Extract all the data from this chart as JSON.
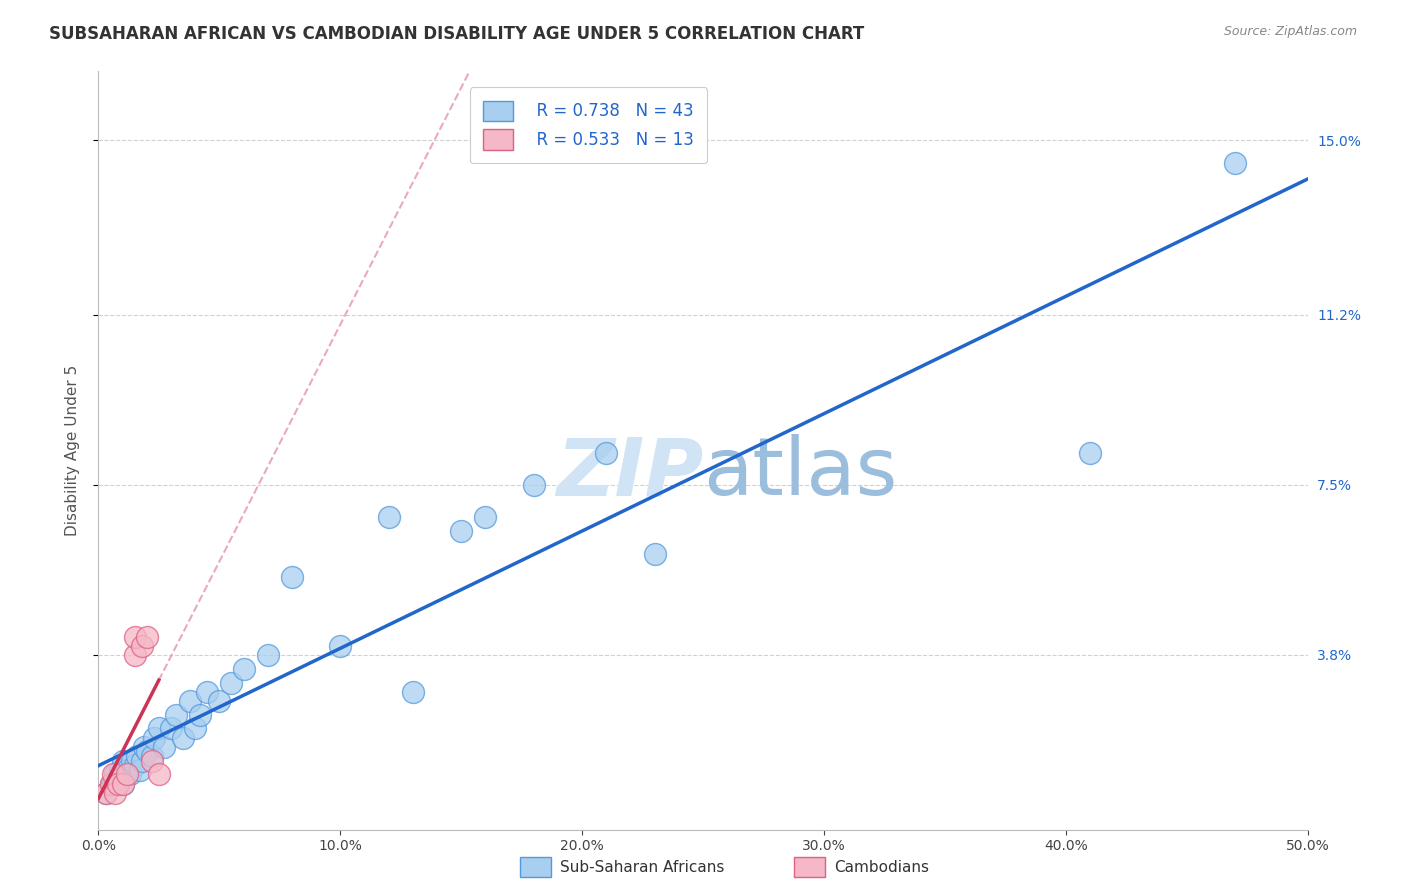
{
  "title": "SUBSAHARAN AFRICAN VS CAMBODIAN DISABILITY AGE UNDER 5 CORRELATION CHART",
  "source": "Source: ZipAtlas.com",
  "ylabel": "Disability Age Under 5",
  "ytick_values": [
    0.038,
    0.075,
    0.112,
    0.15
  ],
  "xlim": [
    0.0,
    0.5
  ],
  "ylim": [
    0.0,
    0.165
  ],
  "legend_blue_r": "R = 0.738",
  "legend_blue_n": "N = 43",
  "legend_pink_r": "R = 0.533",
  "legend_pink_n": "N = 13",
  "legend_label_blue": "Sub-Saharan Africans",
  "legend_label_pink": "Cambodians",
  "blue_scatter_color": "#a8cff0",
  "blue_edge_color": "#5599dd",
  "pink_scatter_color": "#f5b8c8",
  "pink_edge_color": "#e06080",
  "blue_line_color": "#2266cc",
  "pink_line_color": "#cc3355",
  "pink_dash_color": "#e8a0b8",
  "watermark_color": "#d0e4f5",
  "bg_color": "#ffffff",
  "grid_color": "#cccccc",
  "blue_points_x": [
    0.003,
    0.005,
    0.006,
    0.007,
    0.008,
    0.009,
    0.01,
    0.01,
    0.012,
    0.013,
    0.014,
    0.015,
    0.016,
    0.017,
    0.018,
    0.019,
    0.02,
    0.022,
    0.023,
    0.025,
    0.027,
    0.03,
    0.032,
    0.035,
    0.038,
    0.04,
    0.042,
    0.045,
    0.05,
    0.055,
    0.06,
    0.07,
    0.08,
    0.1,
    0.12,
    0.13,
    0.15,
    0.16,
    0.18,
    0.21,
    0.23,
    0.41,
    0.47
  ],
  "blue_points_y": [
    0.008,
    0.01,
    0.01,
    0.012,
    0.011,
    0.013,
    0.01,
    0.015,
    0.013,
    0.012,
    0.015,
    0.014,
    0.016,
    0.013,
    0.015,
    0.018,
    0.017,
    0.016,
    0.02,
    0.022,
    0.018,
    0.022,
    0.025,
    0.02,
    0.028,
    0.022,
    0.025,
    0.03,
    0.028,
    0.032,
    0.035,
    0.038,
    0.055,
    0.04,
    0.068,
    0.03,
    0.065,
    0.068,
    0.075,
    0.082,
    0.06,
    0.082,
    0.145
  ],
  "pink_points_x": [
    0.003,
    0.005,
    0.006,
    0.007,
    0.008,
    0.01,
    0.012,
    0.015,
    0.015,
    0.018,
    0.02,
    0.022,
    0.025
  ],
  "pink_points_y": [
    0.008,
    0.01,
    0.012,
    0.008,
    0.01,
    0.01,
    0.012,
    0.038,
    0.042,
    0.04,
    0.042,
    0.015,
    0.012
  ]
}
